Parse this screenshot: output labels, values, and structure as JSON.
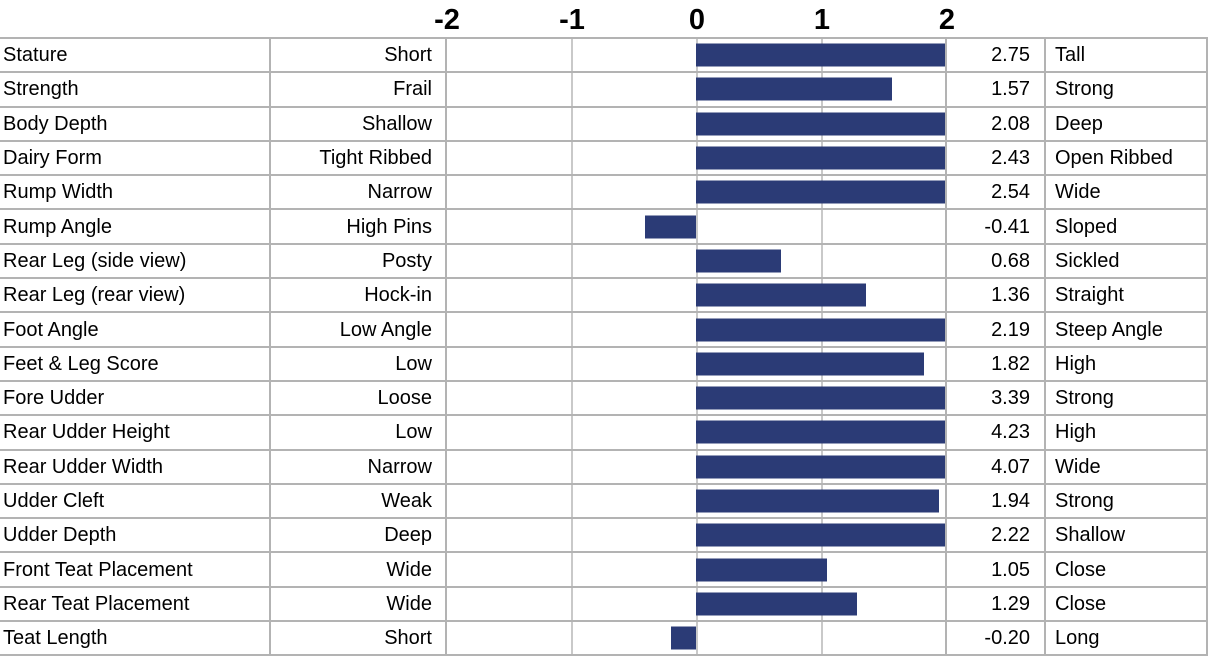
{
  "colors": {
    "bar": "#2B3B76",
    "cell_border": "#b3b3b3",
    "gridline": "#c9c9c9",
    "background": "#ffffff",
    "text": "#000000"
  },
  "chart_data": {
    "type": "bar",
    "orientation": "horizontal",
    "title": "",
    "xlabel": "",
    "ylabel": "",
    "xlim": [
      -2,
      2
    ],
    "grid": true,
    "x_ticks": [
      -2,
      -1,
      0,
      1,
      2
    ],
    "x_tick_labels": [
      "-2",
      "-1",
      "0",
      "1",
      "2"
    ],
    "note_bars_clipped_at": 2,
    "rows": [
      {
        "trait": "Stature",
        "low": "Short",
        "value": 2.75,
        "value_label": "2.75",
        "high": "Tall"
      },
      {
        "trait": "Strength",
        "low": "Frail",
        "value": 1.57,
        "value_label": "1.57",
        "high": "Strong"
      },
      {
        "trait": "Body Depth",
        "low": "Shallow",
        "value": 2.08,
        "value_label": "2.08",
        "high": "Deep"
      },
      {
        "trait": "Dairy Form",
        "low": "Tight Ribbed",
        "value": 2.43,
        "value_label": "2.43",
        "high": "Open Ribbed"
      },
      {
        "trait": "Rump Width",
        "low": "Narrow",
        "value": 2.54,
        "value_label": "2.54",
        "high": "Wide"
      },
      {
        "trait": "Rump Angle",
        "low": "High Pins",
        "value": -0.41,
        "value_label": "-0.41",
        "high": "Sloped"
      },
      {
        "trait": "Rear Leg (side view)",
        "low": "Posty",
        "value": 0.68,
        "value_label": "0.68",
        "high": "Sickled"
      },
      {
        "trait": "Rear Leg (rear view)",
        "low": "Hock-in",
        "value": 1.36,
        "value_label": "1.36",
        "high": "Straight"
      },
      {
        "trait": "Foot Angle",
        "low": "Low Angle",
        "value": 2.19,
        "value_label": "2.19",
        "high": "Steep Angle"
      },
      {
        "trait": "Feet & Leg Score",
        "low": "Low",
        "value": 1.82,
        "value_label": "1.82",
        "high": "High"
      },
      {
        "trait": "Fore Udder",
        "low": "Loose",
        "value": 3.39,
        "value_label": "3.39",
        "high": "Strong"
      },
      {
        "trait": "Rear Udder Height",
        "low": "Low",
        "value": 4.23,
        "value_label": "4.23",
        "high": "High"
      },
      {
        "trait": "Rear Udder Width",
        "low": "Narrow",
        "value": 4.07,
        "value_label": "4.07",
        "high": "Wide"
      },
      {
        "trait": "Udder Cleft",
        "low": "Weak",
        "value": 1.94,
        "value_label": "1.94",
        "high": "Strong"
      },
      {
        "trait": "Udder Depth",
        "low": "Deep",
        "value": 2.22,
        "value_label": "2.22",
        "high": "Shallow"
      },
      {
        "trait": "Front Teat Placement",
        "low": "Wide",
        "value": 1.05,
        "value_label": "1.05",
        "high": "Close"
      },
      {
        "trait": "Rear Teat Placement",
        "low": "Wide",
        "value": 1.29,
        "value_label": "1.29",
        "high": "Close"
      },
      {
        "trait": "Teat Length",
        "low": "Short",
        "value": -0.2,
        "value_label": "-0.20",
        "high": "Long"
      }
    ]
  }
}
